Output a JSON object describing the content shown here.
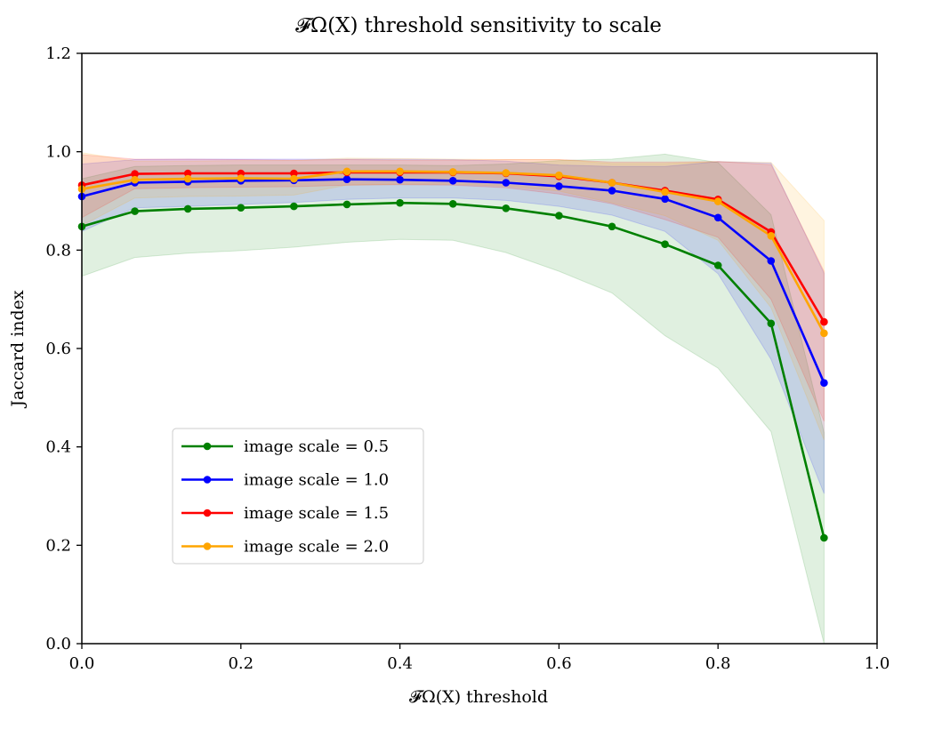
{
  "chart_data": {
    "type": "line",
    "title": "𝓕Ω(X) threshold sensitivity to scale",
    "xlabel": "𝓕Ω(X) threshold",
    "ylabel": "Jaccard index",
    "xlim": [
      0.0,
      1.0
    ],
    "ylim": [
      0.0,
      1.2
    ],
    "x_ticks": [
      0.0,
      0.2,
      0.4,
      0.6,
      0.8,
      1.0
    ],
    "x_tick_labels": [
      "0.0",
      "0.2",
      "0.4",
      "0.6",
      "0.8",
      "1.0"
    ],
    "y_ticks": [
      0.0,
      0.2,
      0.4,
      0.6,
      0.8,
      1.0,
      1.2
    ],
    "y_tick_labels": [
      "0.0",
      "0.2",
      "0.4",
      "0.6",
      "0.8",
      "1.0",
      "1.2"
    ],
    "legend_position": "lower-left",
    "x": [
      0.0,
      0.0667,
      0.1333,
      0.2,
      0.2667,
      0.3333,
      0.4,
      0.4667,
      0.5333,
      0.6,
      0.6667,
      0.7333,
      0.8,
      0.8667,
      0.9333
    ],
    "series": [
      {
        "name": "image scale = 0.5",
        "color": "#008000",
        "values": [
          0.848,
          0.879,
          0.884,
          0.886,
          0.889,
          0.893,
          0.896,
          0.894,
          0.885,
          0.87,
          0.848,
          0.812,
          0.769,
          0.651,
          0.215
        ],
        "lower": [
          0.747,
          0.785,
          0.794,
          0.799,
          0.806,
          0.816,
          0.822,
          0.82,
          0.795,
          0.757,
          0.713,
          0.626,
          0.56,
          0.431,
          0.0
        ],
        "upper": [
          0.945,
          0.97,
          0.972,
          0.973,
          0.973,
          0.973,
          0.973,
          0.972,
          0.975,
          0.982,
          0.985,
          0.995,
          0.978,
          0.872,
          0.429
        ]
      },
      {
        "name": "image scale = 1.0",
        "color": "#0000ff",
        "values": [
          0.909,
          0.937,
          0.939,
          0.941,
          0.942,
          0.944,
          0.943,
          0.941,
          0.937,
          0.93,
          0.921,
          0.904,
          0.866,
          0.778,
          0.53
        ],
        "lower": [
          0.838,
          0.886,
          0.889,
          0.893,
          0.897,
          0.903,
          0.906,
          0.906,
          0.901,
          0.889,
          0.871,
          0.838,
          0.752,
          0.578,
          0.305
        ],
        "upper": [
          0.975,
          0.984,
          0.985,
          0.985,
          0.985,
          0.985,
          0.985,
          0.984,
          0.981,
          0.973,
          0.97,
          0.97,
          0.98,
          0.977,
          0.753
        ]
      },
      {
        "name": "image scale = 1.5",
        "color": "#ff0000",
        "values": [
          0.932,
          0.955,
          0.956,
          0.956,
          0.956,
          0.958,
          0.958,
          0.958,
          0.956,
          0.95,
          0.937,
          0.921,
          0.903,
          0.837,
          0.654
        ],
        "lower": [
          0.866,
          0.925,
          0.927,
          0.928,
          0.929,
          0.932,
          0.933,
          0.932,
          0.927,
          0.914,
          0.894,
          0.862,
          0.826,
          0.7,
          0.452
        ],
        "upper": [
          0.994,
          0.985,
          0.985,
          0.984,
          0.983,
          0.984,
          0.983,
          0.983,
          0.984,
          0.984,
          0.979,
          0.979,
          0.98,
          0.974,
          0.757
        ]
      },
      {
        "name": "image scale = 2.0",
        "color": "#ffa500",
        "values": [
          0.924,
          0.943,
          0.945,
          0.946,
          0.945,
          0.96,
          0.96,
          0.959,
          0.957,
          0.952,
          0.937,
          0.918,
          0.899,
          0.829,
          0.631
        ],
        "lower": [
          0.85,
          0.906,
          0.909,
          0.91,
          0.912,
          0.932,
          0.934,
          0.934,
          0.93,
          0.92,
          0.896,
          0.87,
          0.82,
          0.683,
          0.414
        ],
        "upper": [
          0.998,
          0.981,
          0.981,
          0.982,
          0.982,
          0.987,
          0.986,
          0.985,
          0.984,
          0.984,
          0.976,
          0.976,
          0.98,
          0.978,
          0.86
        ]
      }
    ]
  }
}
